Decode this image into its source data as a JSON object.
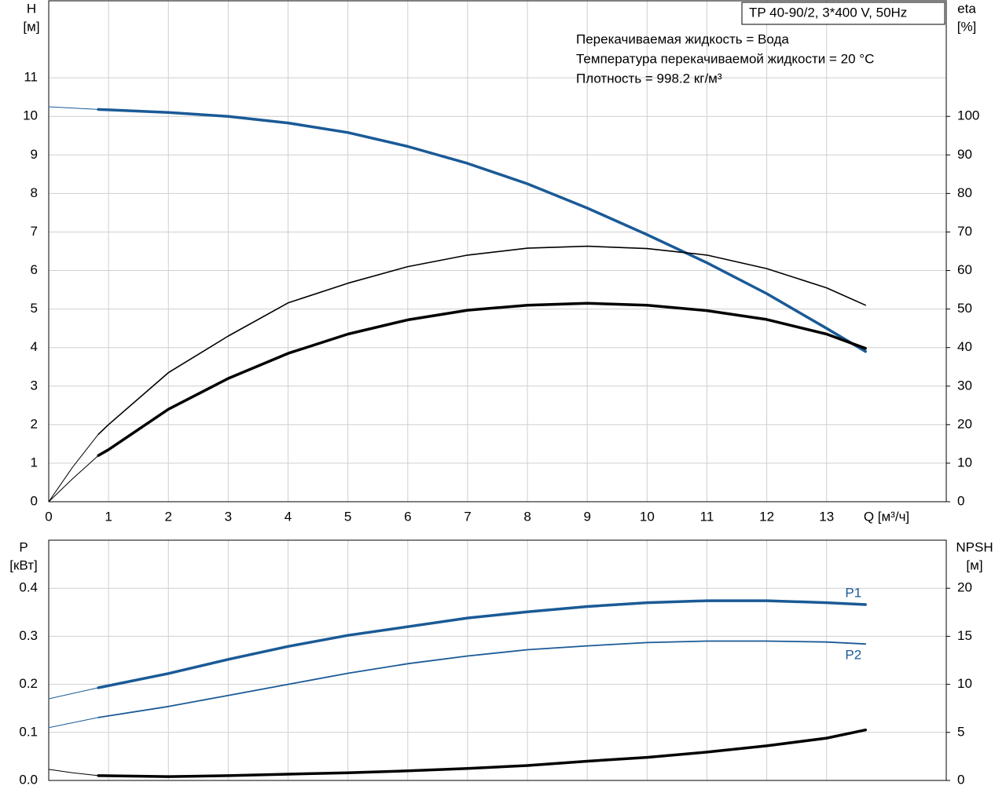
{
  "chart_data": [
    {
      "type": "line",
      "annotations": [
        "TP 40-90/2, 3*400 V, 50Hz",
        "Перекачиваемая жидкость = Вода",
        "Температура перекачиваемой жидкости = 20 °C",
        "Плотность = 998.2 кг/м³"
      ],
      "ylabel": "H",
      "yunit": "[м]",
      "y2label": "eta",
      "y2unit": "[%]",
      "xlabel": "Q [м³/ч]",
      "xlim": [
        0,
        15
      ],
      "xticks": [
        0,
        1,
        2,
        3,
        4,
        5,
        6,
        7,
        8,
        9,
        10,
        11,
        12,
        13
      ],
      "ylim": [
        0,
        13
      ],
      "yticks": [
        0,
        1,
        2,
        3,
        4,
        5,
        6,
        7,
        8,
        9,
        10,
        11
      ],
      "y2lim": [
        0,
        130
      ],
      "y2ticks": [
        0,
        10,
        20,
        30,
        40,
        50,
        60,
        70,
        80,
        90,
        100
      ],
      "grid": true,
      "xtick_labels": true,
      "series": [
        {
          "color": "#1a5a96",
          "width": 3.5,
          "axis": "y",
          "x": [
            0.83,
            1,
            2,
            3,
            4,
            5,
            6,
            7,
            8,
            9,
            10,
            11,
            12,
            13,
            13.65
          ],
          "values": [
            10.18,
            10.17,
            10.1,
            10.0,
            9.83,
            9.58,
            9.22,
            8.78,
            8.25,
            7.62,
            6.93,
            6.2,
            5.4,
            4.5,
            3.9
          ]
        },
        {
          "color": "#1a5a96",
          "width": 1,
          "axis": "y",
          "x": [
            0,
            0.83
          ],
          "values": [
            10.25,
            10.18
          ]
        },
        {
          "color": "#000000",
          "width": 1.6,
          "axis": "y2",
          "x": [
            0.83,
            1,
            2,
            3,
            4,
            5,
            6,
            7,
            8,
            9,
            10,
            11,
            12,
            13,
            13.65
          ],
          "values": [
            17.5,
            20,
            33.5,
            43,
            51.6,
            56.7,
            61,
            64,
            65.8,
            66.3,
            65.7,
            64,
            60.5,
            55.5,
            51
          ]
        },
        {
          "color": "#000000",
          "width": 1,
          "axis": "y2",
          "x": [
            0,
            0.4,
            0.83
          ],
          "values": [
            0,
            9,
            17.5
          ]
        },
        {
          "color": "#000000",
          "width": 3.5,
          "axis": "y2",
          "x": [
            0.83,
            1,
            2,
            3,
            4,
            5,
            6,
            7,
            8,
            9,
            10,
            11,
            12,
            13,
            13.65
          ],
          "values": [
            12,
            13.5,
            24,
            32,
            38.5,
            43.5,
            47.2,
            49.7,
            51,
            51.5,
            51,
            49.6,
            47.3,
            43.5,
            39.8
          ]
        },
        {
          "color": "#000000",
          "width": 1,
          "axis": "y2",
          "x": [
            0,
            0.4,
            0.83
          ],
          "values": [
            0,
            6,
            12
          ]
        }
      ]
    },
    {
      "type": "line",
      "ylabel": "P",
      "yunit": "[кВт]",
      "y2label": "NPSH",
      "y2unit": "[м]",
      "xlim": [
        0,
        15
      ],
      "xticks": [
        0,
        1,
        2,
        3,
        4,
        5,
        6,
        7,
        8,
        9,
        10,
        11,
        12,
        13
      ],
      "ylim": [
        0,
        0.5
      ],
      "yticks": [
        {
          "value": 0,
          "label": "0.0"
        },
        0.1,
        0.2,
        0.3,
        0.4
      ],
      "y2lim": [
        0,
        25
      ],
      "y2ticks": [
        0,
        5,
        10,
        15,
        20
      ],
      "grid": true,
      "xtick_labels": false,
      "series": [
        {
          "name": "P1",
          "color": "#1a5a96",
          "width": 3.5,
          "axis": "y",
          "x": [
            0.83,
            2,
            3,
            4,
            5,
            6,
            7,
            8,
            9,
            10,
            11,
            12,
            13,
            13.65
          ],
          "values": [
            0.193,
            0.2226,
            0.252,
            0.279,
            0.302,
            0.32,
            0.338,
            0.351,
            0.362,
            0.37,
            0.374,
            0.374,
            0.37,
            0.366
          ]
        },
        {
          "color": "#1a5a96",
          "width": 1,
          "axis": "y",
          "x": [
            0,
            0.83
          ],
          "values": [
            0.17,
            0.193
          ]
        },
        {
          "name": "P2",
          "color": "#1a5a96",
          "width": 1.8,
          "axis": "y",
          "x": [
            0.83,
            2,
            3,
            4,
            5,
            6,
            7,
            8,
            9,
            10,
            11,
            12,
            13,
            13.65
          ],
          "values": [
            0.131,
            0.154,
            0.177,
            0.2,
            0.223,
            0.243,
            0.259,
            0.272,
            0.28,
            0.287,
            0.29,
            0.29,
            0.288,
            0.284
          ]
        },
        {
          "color": "#1a5a96",
          "width": 1,
          "axis": "y",
          "x": [
            0,
            0.83
          ],
          "values": [
            0.11,
            0.131
          ]
        },
        {
          "color": "#000000",
          "width": 3.5,
          "axis": "y2",
          "x": [
            0.83,
            2,
            3,
            4,
            5,
            6,
            7,
            8,
            9,
            10,
            11,
            12,
            13,
            13.65
          ],
          "values": [
            0.5,
            0.4,
            0.5,
            0.65,
            0.8,
            1.0,
            1.25,
            1.55,
            2.0,
            2.4,
            2.95,
            3.6,
            4.4,
            5.25
          ]
        },
        {
          "color": "#000000",
          "width": 1,
          "axis": "y2",
          "x": [
            0,
            0.4,
            0.83
          ],
          "values": [
            1.15,
            0.8,
            0.5
          ]
        }
      ]
    }
  ]
}
